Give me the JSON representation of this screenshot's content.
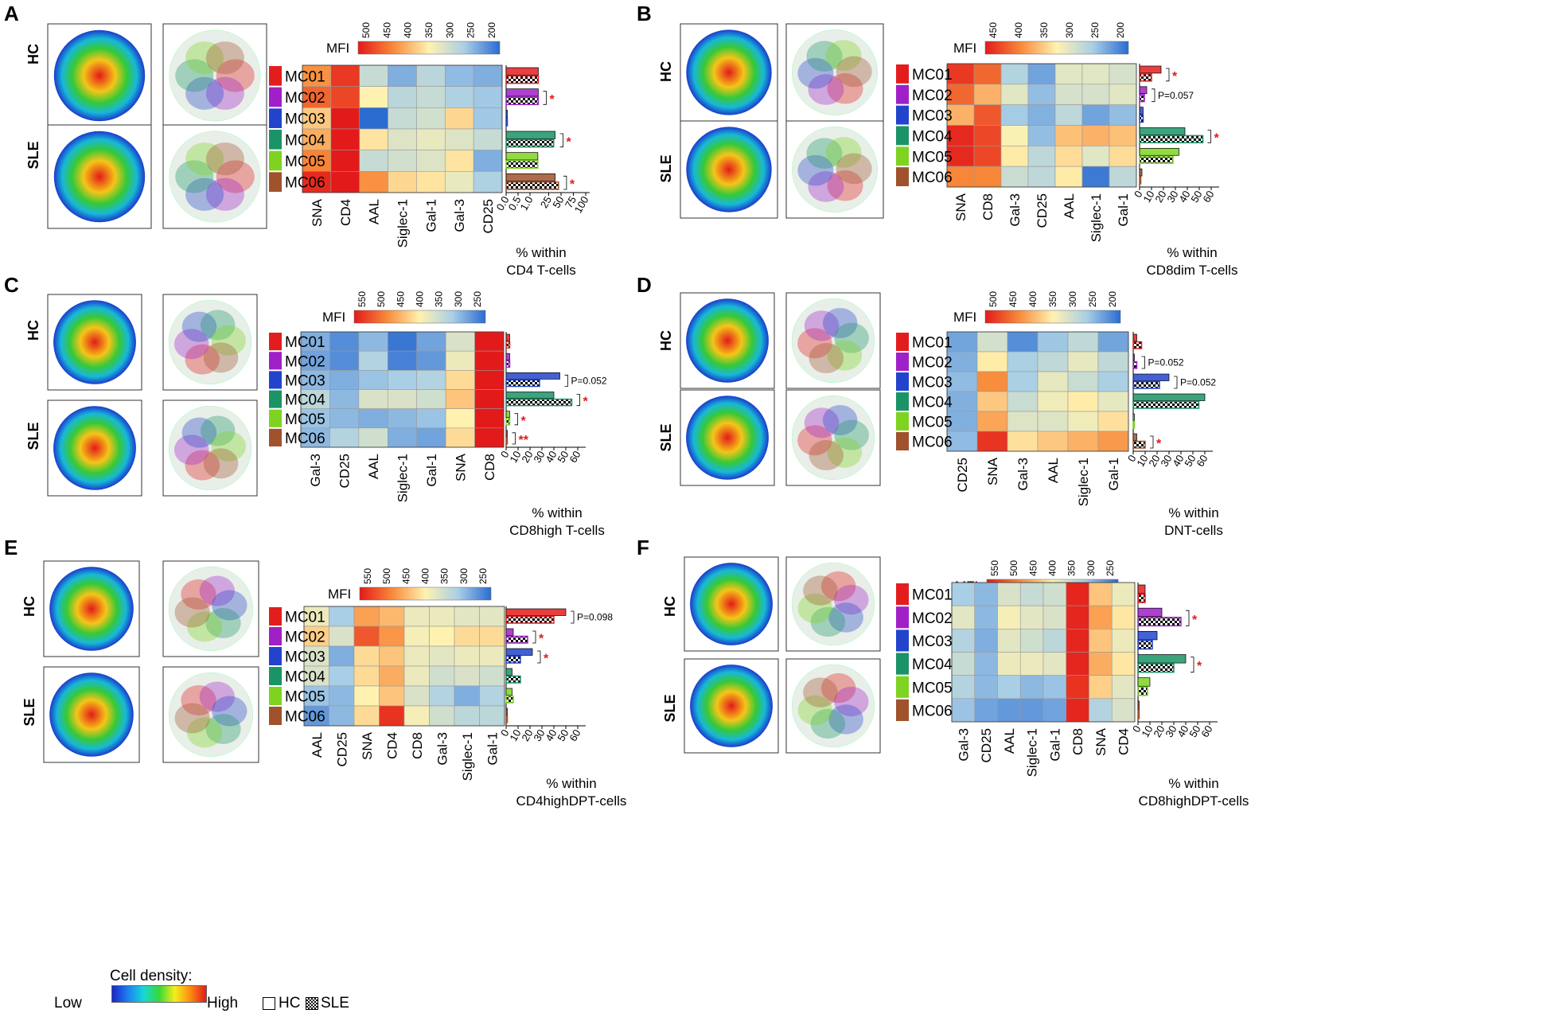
{
  "clusters": [
    "MC01",
    "MC02",
    "MC03",
    "MC04",
    "MC05",
    "MC06"
  ],
  "cluster_colors": [
    "#e31d1d",
    "#a020c8",
    "#2244cc",
    "#1a9466",
    "#7ed321",
    "#a0522d"
  ],
  "mfi_label": "MFI",
  "row_labels": [
    "HC",
    "SLE"
  ],
  "legend": {
    "density_title": "Cell density:",
    "low": "Low",
    "high": "High",
    "hc": "HC",
    "sle": "SLE"
  },
  "chart_data": [
    {
      "panel": "A",
      "type": "heatmap+bar",
      "columns": [
        "SNA",
        "CD4",
        "AAL",
        "Siglec-1",
        "Gal-1",
        "Gal-3",
        "CD25"
      ],
      "colorbar_ticks": [
        "500",
        "450",
        "400",
        "350",
        "300",
        "250",
        "200"
      ],
      "vmin": 200,
      "vmax": 500,
      "mfi": [
        [
          420,
          480,
          300,
          250,
          290,
          260,
          250
        ],
        [
          450,
          470,
          350,
          290,
          300,
          280,
          270
        ],
        [
          380,
          520,
          200,
          300,
          310,
          370,
          270
        ],
        [
          400,
          500,
          360,
          320,
          330,
          320,
          300
        ],
        [
          430,
          530,
          300,
          310,
          320,
          360,
          250
        ],
        [
          490,
          500,
          420,
          370,
          360,
          330,
          280
        ]
      ],
      "hc": [
        4,
        4,
        0,
        38,
        3,
        38
      ],
      "sle": [
        4,
        4,
        0,
        35,
        3,
        45
      ],
      "x_ticks": [
        "0.0",
        "0.5",
        "1.0",
        "25",
        "50",
        "75",
        "100"
      ],
      "xlabel_lines": [
        "% within",
        "CD4 T-cells"
      ],
      "annotations": [
        {
          "row": 1,
          "text": "*",
          "color": "#e31a1a"
        },
        {
          "row": 3,
          "text": "*",
          "color": "#e31a1a"
        },
        {
          "row": 5,
          "text": "*",
          "color": "#e31a1a"
        }
      ]
    },
    {
      "panel": "B",
      "type": "heatmap+bar",
      "columns": [
        "SNA",
        "CD8",
        "Gal-3",
        "CD25",
        "AAL",
        "Siglec-1",
        "Gal-1"
      ],
      "colorbar_ticks": [
        "450",
        "400",
        "350",
        "300",
        "250",
        "200"
      ],
      "vmin": 190,
      "vmax": 480,
      "mfi": [
        [
          460,
          430,
          270,
          230,
          310,
          310,
          300
        ],
        [
          430,
          380,
          310,
          250,
          300,
          300,
          310
        ],
        [
          380,
          440,
          260,
          240,
          280,
          230,
          250
        ],
        [
          470,
          450,
          330,
          250,
          370,
          380,
          370
        ],
        [
          470,
          450,
          340,
          280,
          350,
          310,
          350
        ],
        [
          410,
          410,
          290,
          280,
          340,
          200,
          280
        ]
      ],
      "hc": [
        18,
        6,
        3,
        38,
        33,
        2
      ],
      "sle": [
        10,
        4,
        3,
        53,
        28,
        1
      ],
      "x_ticks": [
        "0",
        "10",
        "20",
        "30",
        "40",
        "50",
        "60"
      ],
      "xlabel_lines": [
        "% within",
        "CD8dim T-cells"
      ],
      "annotations": [
        {
          "row": 0,
          "text": "*",
          "color": "#e31a1a"
        },
        {
          "row": 1,
          "text": "P=0.057",
          "color": "#000000"
        },
        {
          "row": 3,
          "text": "*",
          "color": "#e31a1a"
        }
      ]
    },
    {
      "panel": "C",
      "type": "heatmap+bar",
      "columns": [
        "Gal-3",
        "CD25",
        "AAL",
        "Siglec-1",
        "Gal-1",
        "SNA",
        "CD8"
      ],
      "colorbar_ticks": [
        "550",
        "500",
        "450",
        "400",
        "350",
        "300",
        "250"
      ],
      "vmin": 220,
      "vmax": 580,
      "mfi": [
        [
          280,
          250,
          290,
          230,
          270,
          360,
          580
        ],
        [
          270,
          250,
          320,
          240,
          260,
          380,
          580
        ],
        [
          290,
          280,
          300,
          310,
          320,
          420,
          590
        ],
        [
          330,
          290,
          360,
          360,
          350,
          440,
          580
        ],
        [
          300,
          290,
          280,
          290,
          300,
          400,
          590
        ],
        [
          290,
          320,
          350,
          280,
          270,
          420,
          580
        ]
      ],
      "hc": [
        3,
        3,
        45,
        40,
        3,
        1
      ],
      "sle": [
        3,
        3,
        28,
        55,
        3,
        1
      ],
      "x_ticks": [
        "0",
        "10",
        "20",
        "30",
        "40",
        "50",
        "60"
      ],
      "xlabel_lines": [
        "% within",
        "CD8high T-cells"
      ],
      "annotations": [
        {
          "row": 2,
          "text": "P=0.052",
          "color": "#000000"
        },
        {
          "row": 3,
          "text": "*",
          "color": "#e31a1a"
        },
        {
          "row": 4,
          "text": "*",
          "color": "#e31a1a"
        },
        {
          "row": 5,
          "text": "**",
          "color": "#e31a1a"
        }
      ]
    },
    {
      "panel": "D",
      "type": "heatmap+bar",
      "columns": [
        "CD25",
        "SNA",
        "Gal-3",
        "AAL",
        "Siglec-1",
        "Gal-1"
      ],
      "colorbar_ticks": [
        "500",
        "450",
        "400",
        "350",
        "300",
        "250",
        "200"
      ],
      "vmin": 190,
      "vmax": 540,
      "mfi": [
        [
          240,
          320,
          220,
          270,
          300,
          240
        ],
        [
          250,
          370,
          280,
          300,
          340,
          300
        ],
        [
          260,
          450,
          280,
          340,
          310,
          280
        ],
        [
          250,
          400,
          310,
          350,
          370,
          340
        ],
        [
          250,
          430,
          330,
          330,
          350,
          380
        ],
        [
          260,
          520,
          380,
          400,
          420,
          440
        ]
      ],
      "hc": [
        3,
        1,
        30,
        60,
        1,
        3
      ],
      "sle": [
        7,
        3,
        22,
        55,
        1,
        10
      ],
      "x_ticks": [
        "0",
        "10",
        "20",
        "30",
        "40",
        "50",
        "60"
      ],
      "xlabel_lines": [
        "% within",
        "DNT-cells"
      ],
      "annotations": [
        {
          "row": 1,
          "text": "P=0.052",
          "color": "#000000"
        },
        {
          "row": 2,
          "text": "P=0.052",
          "color": "#000000"
        },
        {
          "row": 5,
          "text": "*",
          "color": "#e31a1a"
        }
      ]
    },
    {
      "panel": "E",
      "type": "heatmap+bar",
      "columns": [
        "AAL",
        "CD25",
        "SNA",
        "CD4",
        "CD8",
        "Gal-3",
        "Siglec-1",
        "Gal-1"
      ],
      "colorbar_ticks": [
        "550",
        "500",
        "450",
        "400",
        "350",
        "300",
        "250"
      ],
      "vmin": 220,
      "vmax": 580,
      "mfi": [
        [
          380,
          310,
          470,
          450,
          380,
          380,
          370,
          370
        ],
        [
          430,
          360,
          530,
          480,
          390,
          400,
          420,
          420
        ],
        [
          360,
          280,
          420,
          440,
          380,
          370,
          380,
          380
        ],
        [
          360,
          310,
          420,
          460,
          380,
          350,
          360,
          350
        ],
        [
          300,
          290,
          400,
          440,
          360,
          320,
          280,
          320
        ],
        [
          260,
          290,
          420,
          560,
          390,
          350,
          330,
          330
        ]
      ],
      "hc": [
        50,
        6,
        22,
        5,
        5,
        1
      ],
      "sle": [
        40,
        18,
        12,
        12,
        6,
        1
      ],
      "x_ticks": [
        "0",
        "10",
        "20",
        "30",
        "40",
        "50",
        "60"
      ],
      "xlabel_lines": [
        "% within",
        "CD4highDPT-cells"
      ],
      "annotations": [
        {
          "row": 0,
          "text": "P=0.098",
          "color": "#000000"
        },
        {
          "row": 1,
          "text": "*",
          "color": "#e31a1a"
        },
        {
          "row": 2,
          "text": "*",
          "color": "#e31a1a"
        }
      ]
    },
    {
      "panel": "F",
      "type": "heatmap+bar",
      "columns": [
        "Gal-3",
        "CD25",
        "AAL",
        "Siglec-1",
        "Gal-1",
        "CD8",
        "SNA",
        "CD4"
      ],
      "colorbar_ticks": [
        "550",
        "500",
        "450",
        "400",
        "350",
        "300",
        "250"
      ],
      "vmin": 220,
      "vmax": 580,
      "mfi": [
        [
          310,
          290,
          360,
          340,
          350,
          570,
          440,
          380
        ],
        [
          370,
          290,
          390,
          370,
          360,
          570,
          470,
          410
        ],
        [
          320,
          280,
          370,
          350,
          330,
          570,
          440,
          380
        ],
        [
          340,
          290,
          380,
          380,
          370,
          570,
          460,
          410
        ],
        [
          320,
          290,
          310,
          290,
          300,
          560,
          430,
          370
        ],
        [
          300,
          270,
          260,
          260,
          270,
          570,
          320,
          360
        ]
      ],
      "hc": [
        6,
        20,
        16,
        40,
        10,
        1
      ],
      "sle": [
        6,
        36,
        12,
        30,
        8,
        1
      ],
      "x_ticks": [
        "0",
        "10",
        "20",
        "30",
        "40",
        "50",
        "60"
      ],
      "xlabel_lines": [
        "% within",
        "CD8highDPT-cells"
      ],
      "annotations": [
        {
          "row": 1,
          "text": "*",
          "color": "#e31a1a"
        },
        {
          "row": 3,
          "text": "*",
          "color": "#e31a1a"
        }
      ]
    }
  ]
}
